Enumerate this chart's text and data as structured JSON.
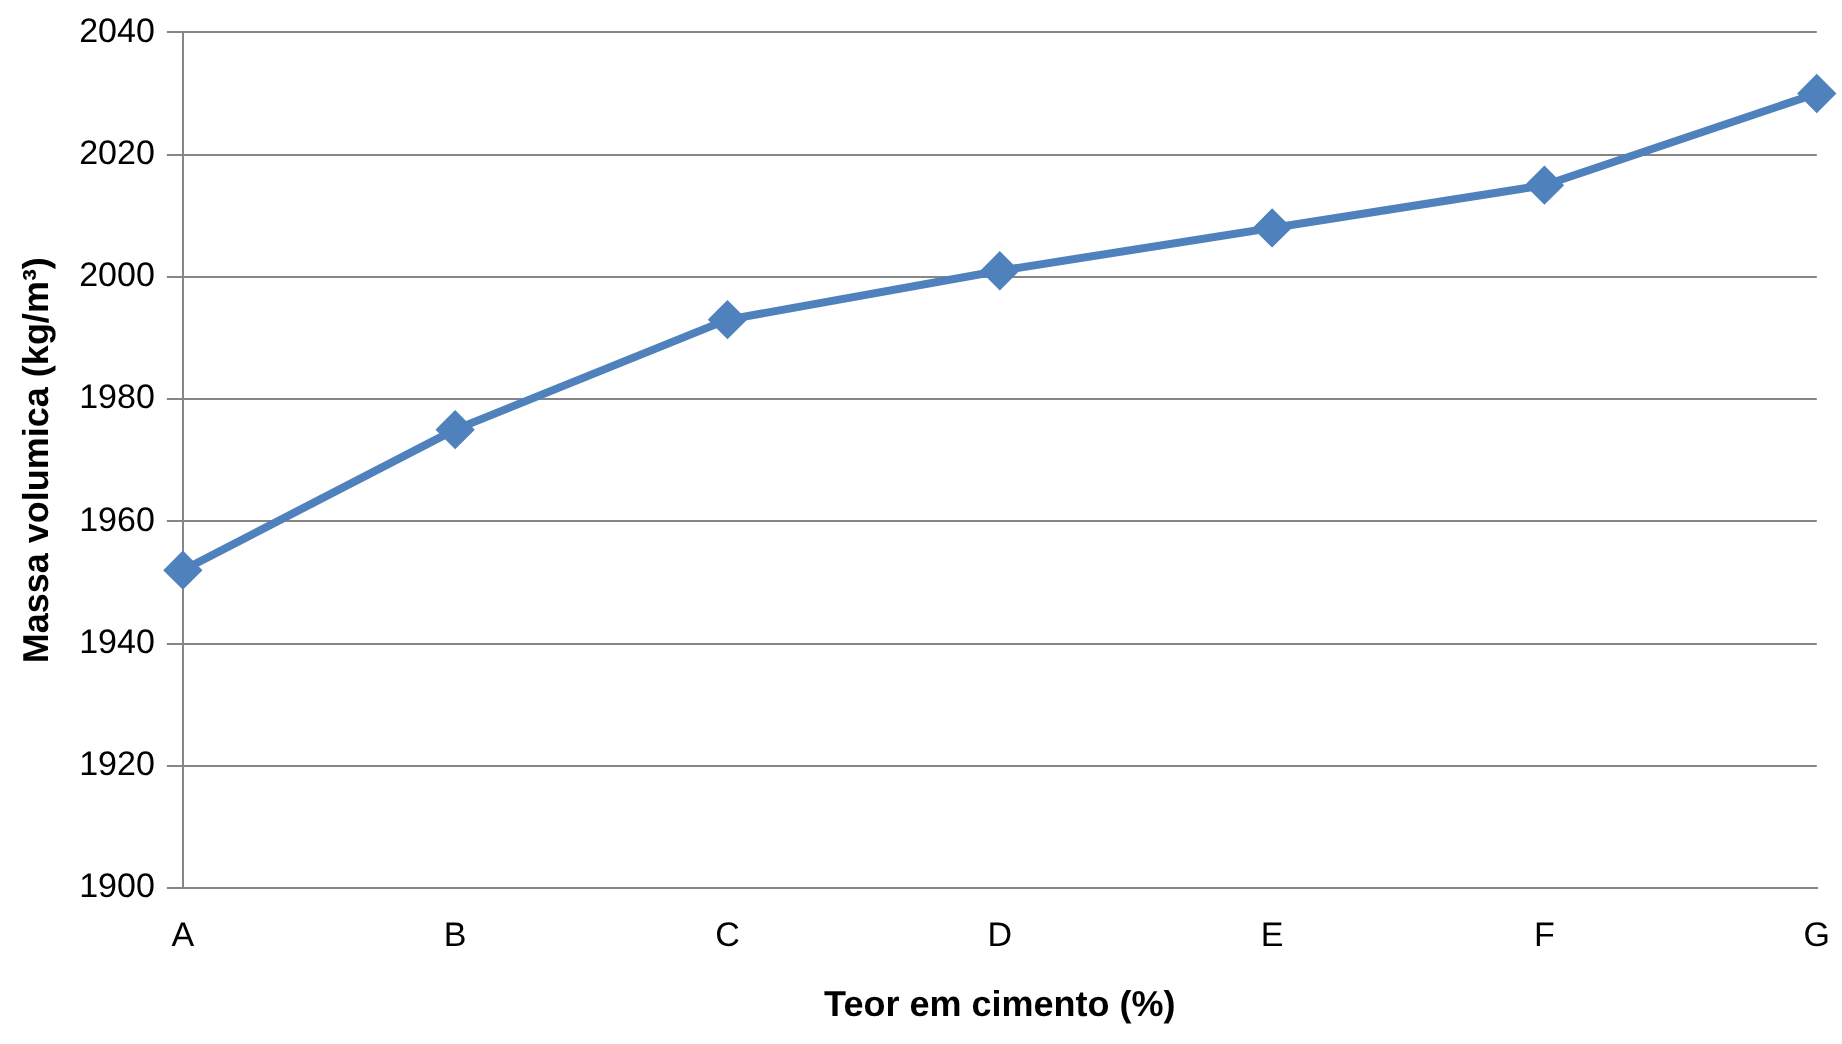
{
  "chart_data": {
    "type": "line",
    "xlabel": "Teor em cimento (%)",
    "ylabel": "Massa volumica (kg/m³)",
    "categories": [
      "A",
      "B",
      "C",
      "D",
      "E",
      "F",
      "G"
    ],
    "series": [
      {
        "color": "#4f81bd",
        "values": [
          1952,
          1975,
          1993,
          2001,
          2008,
          2015,
          2030
        ]
      }
    ],
    "ylim": [
      1900,
      2040
    ],
    "yticks": [
      1900,
      1920,
      1940,
      1960,
      1980,
      2000,
      2020,
      2040
    ],
    "grid": "y",
    "legend": false,
    "marker": "diamond",
    "line_style": "solid"
  }
}
